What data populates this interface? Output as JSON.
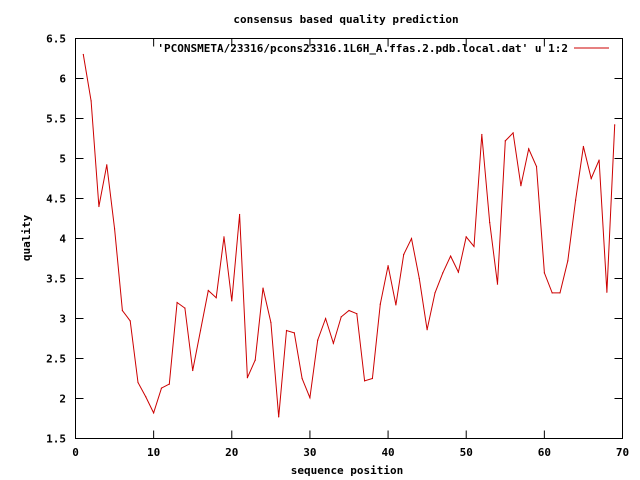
{
  "chart_data": {
    "type": "line",
    "title": "consensus based quality prediction",
    "xlabel": "sequence position",
    "ylabel": "quality",
    "xlim": [
      0,
      70
    ],
    "ylim": [
      1.5,
      6.5
    ],
    "grid": false,
    "legend_position": "top-right",
    "x_ticks": [
      "0",
      "10",
      "20",
      "30",
      "40",
      "50",
      "60",
      "70"
    ],
    "y_ticks": [
      "1.5",
      "2",
      "2.5",
      "3",
      "3.5",
      "4",
      "4.5",
      "5",
      "5.5",
      "6",
      "6.5"
    ],
    "series": [
      {
        "name": "'PCONSMETA/23316/pcons23316.1L6H_A.ffas.2.pdb.local.dat' u 1:2",
        "color": "#cc0000",
        "x": [
          1,
          2,
          3,
          4,
          5,
          6,
          7,
          8,
          9,
          10,
          11,
          12,
          13,
          14,
          15,
          16,
          17,
          18,
          19,
          20,
          21,
          22,
          23,
          24,
          25,
          26,
          27,
          28,
          29,
          30,
          31,
          32,
          33,
          34,
          35,
          36,
          37,
          38,
          39,
          40,
          41,
          42,
          43,
          44,
          45,
          46,
          47,
          48,
          49,
          50,
          51,
          52,
          53,
          54,
          55,
          56,
          57,
          58,
          59,
          60,
          61,
          62,
          63,
          64,
          65,
          66,
          67,
          68,
          69
        ],
        "y": [
          6.3,
          5.72,
          4.4,
          4.92,
          4.12,
          3.1,
          2.97,
          2.2,
          2.02,
          1.82,
          2.13,
          2.18,
          3.2,
          3.13,
          2.35,
          2.85,
          3.35,
          3.26,
          4.02,
          3.22,
          4.3,
          2.26,
          2.48,
          3.38,
          2.95,
          1.77,
          2.85,
          2.82,
          2.25,
          2.01,
          2.73,
          3.0,
          2.69,
          3.02,
          3.1,
          3.06,
          2.22,
          2.25,
          3.18,
          3.66,
          3.17,
          3.8,
          4.0,
          3.5,
          2.86,
          3.32,
          3.57,
          3.78,
          3.58,
          4.02,
          3.9,
          5.3,
          4.2,
          3.43,
          5.22,
          5.32,
          4.66,
          5.12,
          4.9,
          3.57,
          3.32,
          3.32,
          3.72,
          4.48,
          5.15,
          4.75,
          4.98,
          3.33,
          5.42
        ]
      }
    ]
  }
}
